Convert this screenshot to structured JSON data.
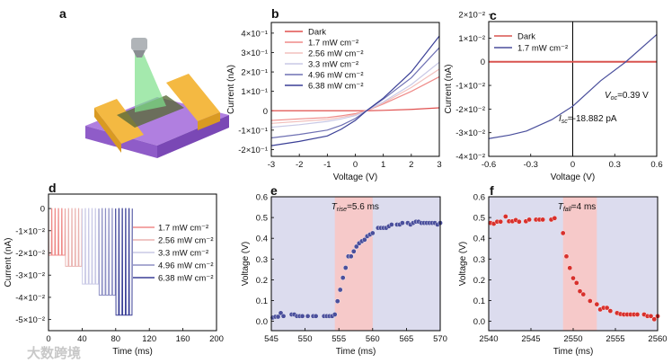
{
  "panels": {
    "a": {
      "label": "a"
    },
    "b": {
      "label": "b"
    },
    "c": {
      "label": "c"
    },
    "d": {
      "label": "d"
    },
    "e": {
      "label": "e"
    },
    "f": {
      "label": "f"
    }
  },
  "watermark": "大数跨境",
  "chart_data": [
    {
      "id": "b",
      "type": "line",
      "xlabel": "Voltage (V)",
      "ylabel": "Current (nA)",
      "xlim": [
        -3,
        3
      ],
      "ylim": [
        -0.235,
        0.455
      ],
      "xticks": [
        -3,
        -2,
        -1,
        0,
        1,
        2,
        3
      ],
      "xticklabels": [
        "-3",
        "-2",
        "-1",
        "0",
        "1",
        "2",
        "3"
      ],
      "yticks": [
        -0.2,
        -0.1,
        0,
        0.1,
        0.2,
        0.3,
        0.4
      ],
      "yticklabels": [
        "-2×10⁻¹",
        "-1×10⁻¹",
        "0",
        "1×10⁻¹",
        "2×10⁻¹",
        "3×10⁻¹",
        "4×10⁻¹"
      ],
      "legend_position": "top-left",
      "x": [
        -3,
        -2,
        -1,
        -0.5,
        0,
        0.4,
        1,
        2,
        3
      ],
      "series": [
        {
          "name": "Dark",
          "color": "#e0504f",
          "values": [
            0,
            0,
            0,
            0,
            0,
            0,
            0.002,
            0.007,
            0.015
          ]
        },
        {
          "name": "1.7 mW cm⁻²",
          "color": "#ef8a88",
          "values": [
            -0.05,
            -0.042,
            -0.035,
            -0.026,
            -0.015,
            0,
            0.035,
            0.1,
            0.175
          ]
        },
        {
          "name": "2.56 mW cm⁻²",
          "color": "#f2c0bd",
          "values": [
            -0.065,
            -0.055,
            -0.045,
            -0.034,
            -0.02,
            0,
            0.04,
            0.12,
            0.215
          ]
        },
        {
          "name": "3.3 mW cm⁻²",
          "color": "#c9c9e6",
          "values": [
            -0.085,
            -0.072,
            -0.055,
            -0.042,
            -0.025,
            0,
            0.045,
            0.135,
            0.25
          ]
        },
        {
          "name": "4.96 mW cm⁻²",
          "color": "#6e70b3",
          "values": [
            -0.14,
            -0.122,
            -0.1,
            -0.075,
            -0.04,
            0,
            0.06,
            0.17,
            0.325
          ]
        },
        {
          "name": "6.38 mW cm⁻²",
          "color": "#3a3f96",
          "values": [
            -0.18,
            -0.158,
            -0.13,
            -0.095,
            -0.05,
            0,
            0.065,
            0.2,
            0.385
          ]
        }
      ]
    },
    {
      "id": "c",
      "type": "line",
      "xlabel": "Voltage (V)",
      "ylabel": "Current (nA)",
      "xlim": [
        -0.6,
        0.6
      ],
      "ylim": [
        -0.04,
        0.017
      ],
      "xticks": [
        -0.6,
        -0.3,
        0,
        0.3,
        0.6
      ],
      "xticklabels": [
        "-0.6",
        "-0.3",
        "0",
        "0.3",
        "0.6"
      ],
      "yticks": [
        -0.04,
        -0.03,
        -0.02,
        -0.01,
        0,
        0.01,
        0.02
      ],
      "yticklabels": [
        "-4×10⁻²",
        "-3×10⁻²",
        "-2×10⁻²",
        "-1×10⁻²",
        "0",
        "1×10⁻²",
        "2×10⁻²"
      ],
      "legend_position": "top-left",
      "x": [
        -0.6,
        -0.45,
        -0.33,
        -0.15,
        0,
        0.2,
        0.38,
        0.6
      ],
      "series": [
        {
          "name": "Dark",
          "color": "#d9534f",
          "values": [
            0,
            0,
            0,
            0,
            0,
            0,
            0,
            0
          ]
        },
        {
          "name": "1.7 mW cm⁻²",
          "color": "#4a4f9c",
          "values": [
            -0.0325,
            -0.031,
            -0.0293,
            -0.0245,
            -0.0188,
            -0.008,
            0,
            0.0115
          ]
        }
      ],
      "annotations": [
        {
          "symbol": "V",
          "sub": "oc",
          "text": "=0.39 V"
        },
        {
          "symbol": "I",
          "sub": "sc",
          "text": "=-18.882 pA"
        }
      ]
    },
    {
      "id": "d",
      "type": "line",
      "xlabel": "Time (ms)",
      "ylabel": "Current (nA)",
      "xlim": [
        0,
        200
      ],
      "ylim": [
        -0.055,
        0.0065
      ],
      "xticks": [
        0,
        40,
        80,
        120,
        160,
        200
      ],
      "xticklabels": [
        "0",
        "40",
        "80",
        "120",
        "160",
        "200"
      ],
      "yticks": [
        -0.05,
        -0.04,
        -0.03,
        -0.02,
        -0.01,
        0
      ],
      "yticklabels": [
        "-5×10⁻²",
        "-4×10⁻²",
        "-3×10⁻²",
        "-2×10⁻²",
        "-1×10⁻²",
        "0"
      ],
      "legend_position": "right",
      "pulse_period_ms": 4,
      "series": [
        {
          "name": "1.7 mW cm⁻²",
          "color": "#ef8a88",
          "start": 0,
          "end": 20,
          "level": -0.021
        },
        {
          "name": "2.56 mW cm⁻²",
          "color": "#eab3b0",
          "start": 20,
          "end": 40,
          "level": -0.026
        },
        {
          "name": "3.3 mW cm⁻²",
          "color": "#c9c9e6",
          "start": 40,
          "end": 60,
          "level": -0.034
        },
        {
          "name": "4.96 mW cm⁻²",
          "color": "#8d8fc4",
          "start": 60,
          "end": 80,
          "level": -0.039
        },
        {
          "name": "6.38 mW cm⁻²",
          "color": "#3a3f96",
          "start": 80,
          "end": 100,
          "level": -0.048
        }
      ]
    },
    {
      "id": "e",
      "type": "scatter",
      "xlabel": "Time (ms)",
      "ylabel": "Voltage (V)",
      "xlim": [
        545,
        570
      ],
      "ylim": [
        -0.045,
        0.6
      ],
      "xticks": [
        545,
        550,
        555,
        560,
        565,
        570
      ],
      "xticklabels": [
        "545",
        "550",
        "555",
        "560",
        "565",
        "570"
      ],
      "yticks": [
        0,
        0.1,
        0.2,
        0.3,
        0.4,
        0.5,
        0.6
      ],
      "yticklabels": [
        "0.0",
        "0.1",
        "0.2",
        "0.3",
        "0.4",
        "0.5",
        "0.6"
      ],
      "background_color": "#dcdcee",
      "shade_color": "#f6c9c9",
      "shade": [
        554.4,
        560
      ],
      "marker_color": "#4a4f9c",
      "annotation": {
        "symbol": "T",
        "sub": "rise",
        "text": "=5.6 ms"
      },
      "points": [
        [
          545.2,
          0.018
        ],
        [
          545.6,
          0.022
        ],
        [
          546,
          0.022
        ],
        [
          546.4,
          0.04
        ],
        [
          546.8,
          0.025
        ],
        [
          548,
          0.033
        ],
        [
          548.4,
          0.033
        ],
        [
          548.8,
          0.025
        ],
        [
          549.2,
          0.025
        ],
        [
          549.6,
          0.025
        ],
        [
          550.4,
          0.025
        ],
        [
          551.2,
          0.025
        ],
        [
          551.6,
          0.025
        ],
        [
          552.8,
          0.025
        ],
        [
          553.2,
          0.025
        ],
        [
          553.6,
          0.025
        ],
        [
          554,
          0.025
        ],
        [
          554.4,
          0.033
        ],
        [
          554.8,
          0.097
        ],
        [
          555.2,
          0.152
        ],
        [
          555.6,
          0.21
        ],
        [
          556,
          0.258
        ],
        [
          556.4,
          0.313
        ],
        [
          556.8,
          0.313
        ],
        [
          557.2,
          0.337
        ],
        [
          557.6,
          0.36
        ],
        [
          558,
          0.376
        ],
        [
          558.4,
          0.386
        ],
        [
          558.8,
          0.393
        ],
        [
          559.2,
          0.41
        ],
        [
          559.6,
          0.418
        ],
        [
          560,
          0.425
        ],
        [
          560.8,
          0.45
        ],
        [
          561.2,
          0.45
        ],
        [
          561.6,
          0.45
        ],
        [
          562,
          0.45
        ],
        [
          562.4,
          0.458
        ],
        [
          562.8,
          0.466
        ],
        [
          563.6,
          0.466
        ],
        [
          564,
          0.466
        ],
        [
          564.4,
          0.474
        ],
        [
          565.2,
          0.474
        ],
        [
          565.6,
          0.466
        ],
        [
          566,
          0.474
        ],
        [
          566.4,
          0.48
        ],
        [
          566.8,
          0.48
        ],
        [
          567.2,
          0.474
        ],
        [
          567.6,
          0.474
        ],
        [
          568,
          0.474
        ],
        [
          568.4,
          0.474
        ],
        [
          568.8,
          0.474
        ],
        [
          569.2,
          0.474
        ],
        [
          569.6,
          0.466
        ],
        [
          570,
          0.474
        ]
      ]
    },
    {
      "id": "f",
      "type": "scatter",
      "xlabel": "Time (ms)",
      "ylabel": "Voltage (V)",
      "xlim": [
        2540,
        2560
      ],
      "ylim": [
        -0.045,
        0.6
      ],
      "xticks": [
        2540,
        2545,
        2550,
        2555,
        2560
      ],
      "xticklabels": [
        "2540",
        "2545",
        "2550",
        "2555",
        "2560"
      ],
      "yticks": [
        0,
        0.1,
        0.2,
        0.3,
        0.4,
        0.5,
        0.6
      ],
      "yticklabels": [
        "0.0",
        "0.1",
        "0.2",
        "0.3",
        "0.4",
        "0.5",
        "0.6"
      ],
      "background_color": "#dcdcee",
      "shade_color": "#f6c9c9",
      "shade": [
        2548.8,
        2552.8
      ],
      "marker_color": "#d8302c",
      "annotation": {
        "symbol": "T",
        "sub": "fall",
        "text": "=4 ms"
      },
      "points": [
        [
          2540.2,
          0.474
        ],
        [
          2540.6,
          0.47
        ],
        [
          2541,
          0.48
        ],
        [
          2541.4,
          0.48
        ],
        [
          2542,
          0.505
        ],
        [
          2542.4,
          0.482
        ],
        [
          2542.8,
          0.482
        ],
        [
          2543.2,
          0.488
        ],
        [
          2543.6,
          0.48
        ],
        [
          2544.4,
          0.482
        ],
        [
          2544.8,
          0.49
        ],
        [
          2545.6,
          0.49
        ],
        [
          2546,
          0.49
        ],
        [
          2546.4,
          0.49
        ],
        [
          2547.4,
          0.49
        ],
        [
          2547.8,
          0.497
        ],
        [
          2548.8,
          0.425
        ],
        [
          2549.2,
          0.313
        ],
        [
          2549.6,
          0.257
        ],
        [
          2550,
          0.208
        ],
        [
          2550.4,
          0.185
        ],
        [
          2550.8,
          0.145
        ],
        [
          2551.2,
          0.13
        ],
        [
          2552,
          0.098
        ],
        [
          2552.8,
          0.082
        ],
        [
          2553.2,
          0.057
        ],
        [
          2553.6,
          0.065
        ],
        [
          2554,
          0.065
        ],
        [
          2554.4,
          0.05
        ],
        [
          2555.2,
          0.04
        ],
        [
          2555.6,
          0.035
        ],
        [
          2556,
          0.033
        ],
        [
          2556.4,
          0.033
        ],
        [
          2556.8,
          0.033
        ],
        [
          2557.2,
          0.033
        ],
        [
          2557.6,
          0.033
        ],
        [
          2558.4,
          0.033
        ],
        [
          2558.8,
          0.025
        ],
        [
          2559.2,
          0.025
        ],
        [
          2559.6,
          0.01
        ],
        [
          2560,
          0.025
        ]
      ]
    }
  ]
}
